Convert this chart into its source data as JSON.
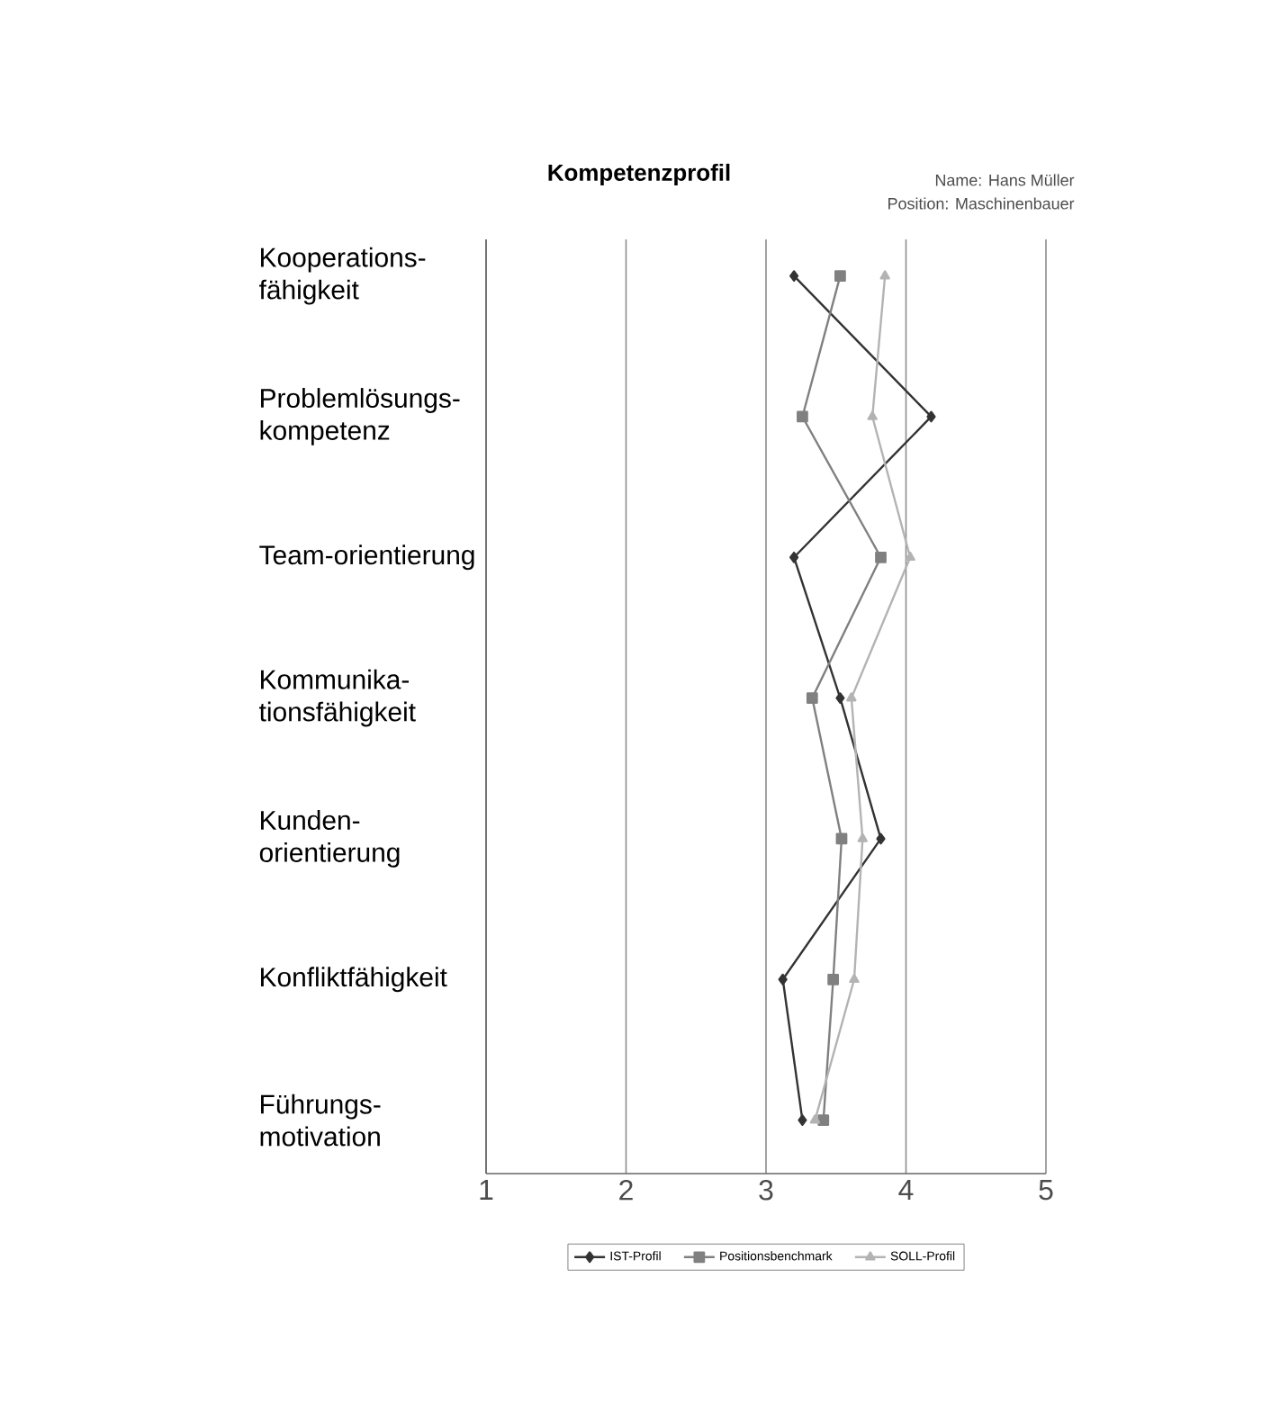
{
  "chart_data": {
    "type": "line",
    "orientation": "horizontal",
    "title": "Kompetenzprofil",
    "annotations": [
      "Name: Hans Müller",
      "Position: Maschinenbauer"
    ],
    "categories": [
      "Kooperations-fähigkeit",
      "Problemlösungs-kompetenz",
      "Team-orientierung",
      "Kommunika-tionsfähigkeit",
      "Kunden-orientierung",
      "Konfliktfähigkeit",
      "Führungs-motivation"
    ],
    "series": [
      {
        "name": "IST-Profil",
        "color": "#333333",
        "marker": "diamond",
        "values": [
          3.2,
          4.18,
          3.2,
          3.53,
          3.82,
          3.12,
          3.26
        ]
      },
      {
        "name": "Positionsbenchmark",
        "color": "#808080",
        "marker": "square",
        "values": [
          3.53,
          3.26,
          3.82,
          3.33,
          3.54,
          3.48,
          3.41
        ]
      },
      {
        "name": "SOLL-Profil",
        "color": "#b3b3b3",
        "marker": "triangle",
        "values": [
          3.85,
          3.76,
          4.03,
          3.61,
          3.69,
          3.63,
          3.35
        ]
      }
    ],
    "xlim": [
      1,
      5
    ],
    "xticks": [
      1,
      2,
      3,
      4,
      5
    ],
    "grid": "x",
    "legend": "bottom",
    "line_style": "solid"
  }
}
